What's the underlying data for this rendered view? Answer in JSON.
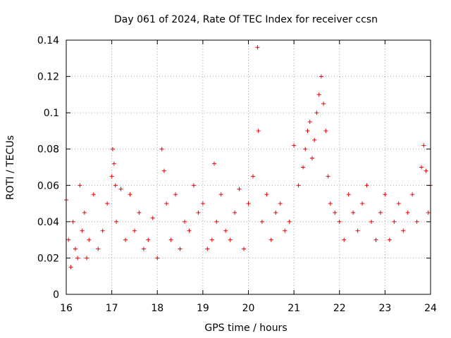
{
  "chart_data": {
    "type": "scatter",
    "title": "Day 061 of 2024, Rate Of TEC Index for receiver ccsn",
    "xlabel": "GPS time / hours",
    "ylabel": "ROTI / TECUs",
    "xlim": [
      16,
      24
    ],
    "ylim": [
      0,
      0.14
    ],
    "xticks": [
      "16",
      "17",
      "18",
      "19",
      "20",
      "21",
      "22",
      "23",
      "24"
    ],
    "yticks": [
      "0",
      "0.02",
      "0.04",
      "0.06",
      "0.08",
      "0.1",
      "0.12",
      "0.14"
    ],
    "grid": true,
    "marker": "+",
    "color": "#ee0000",
    "series": [
      {
        "name": "ROTI",
        "x": [
          16.0,
          16.05,
          16.1,
          16.15,
          16.2,
          16.25,
          16.3,
          16.35,
          16.4,
          16.45,
          16.5,
          16.6,
          16.7,
          16.8,
          16.9,
          17.0,
          17.02,
          17.05,
          17.08,
          17.1,
          17.2,
          17.3,
          17.4,
          17.5,
          17.6,
          17.7,
          17.8,
          17.9,
          18.0,
          18.1,
          18.15,
          18.2,
          18.3,
          18.4,
          18.5,
          18.6,
          18.7,
          18.8,
          18.9,
          19.0,
          19.1,
          19.2,
          19.25,
          19.3,
          19.4,
          19.5,
          19.6,
          19.7,
          19.8,
          19.9,
          20.0,
          20.1,
          20.2,
          20.22,
          20.3,
          20.4,
          20.5,
          20.6,
          20.7,
          20.8,
          20.9,
          21.0,
          21.1,
          21.2,
          21.25,
          21.3,
          21.35,
          21.4,
          21.45,
          21.5,
          21.55,
          21.6,
          21.65,
          21.7,
          21.75,
          21.8,
          21.9,
          22.0,
          22.1,
          22.2,
          22.3,
          22.4,
          22.5,
          22.6,
          22.7,
          22.8,
          22.9,
          23.0,
          23.1,
          23.2,
          23.3,
          23.4,
          23.5,
          23.6,
          23.7,
          23.8,
          23.85,
          23.9,
          23.95,
          24.0
        ],
        "y": [
          0.052,
          0.03,
          0.015,
          0.04,
          0.025,
          0.02,
          0.06,
          0.035,
          0.045,
          0.02,
          0.03,
          0.055,
          0.025,
          0.035,
          0.05,
          0.065,
          0.08,
          0.072,
          0.06,
          0.04,
          0.058,
          0.03,
          0.055,
          0.035,
          0.045,
          0.025,
          0.03,
          0.042,
          0.02,
          0.08,
          0.068,
          0.05,
          0.03,
          0.055,
          0.025,
          0.04,
          0.035,
          0.06,
          0.045,
          0.05,
          0.025,
          0.03,
          0.072,
          0.04,
          0.055,
          0.035,
          0.03,
          0.045,
          0.058,
          0.025,
          0.05,
          0.065,
          0.136,
          0.09,
          0.04,
          0.055,
          0.03,
          0.045,
          0.05,
          0.035,
          0.04,
          0.082,
          0.06,
          0.07,
          0.08,
          0.09,
          0.095,
          0.075,
          0.085,
          0.1,
          0.11,
          0.12,
          0.105,
          0.09,
          0.065,
          0.05,
          0.045,
          0.04,
          0.03,
          0.055,
          0.045,
          0.035,
          0.05,
          0.06,
          0.04,
          0.03,
          0.045,
          0.055,
          0.03,
          0.04,
          0.05,
          0.035,
          0.045,
          0.055,
          0.04,
          0.07,
          0.082,
          0.068,
          0.045,
          0.06
        ]
      }
    ]
  }
}
